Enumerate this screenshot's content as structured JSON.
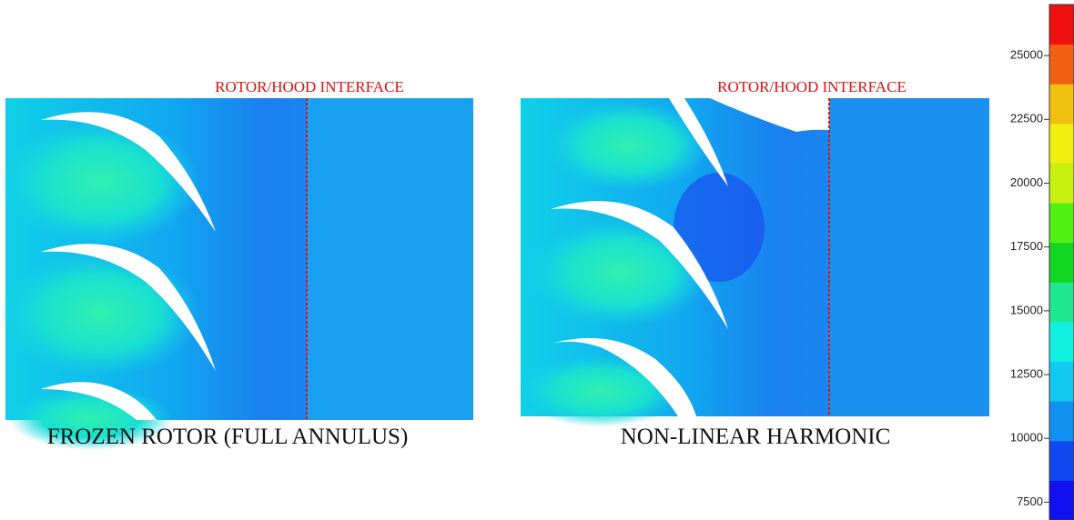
{
  "panels": [
    {
      "interface_label": "ROTOR/HOOD INTERFACE",
      "caption": "FROZEN ROTOR (FULL ANNULUS)"
    },
    {
      "interface_label": "ROTOR/HOOD INTERFACE",
      "caption": "NON-LINEAR HARMONIC"
    }
  ],
  "colorbar": {
    "lim": [
      6800,
      27000
    ],
    "ticks": [
      7500,
      10000,
      12500,
      15000,
      17500,
      20000,
      22500,
      25000
    ],
    "colors": [
      "#1010f0",
      "#1048f0",
      "#1090f0",
      "#10c8f0",
      "#10f0e0",
      "#20e890",
      "#10d820",
      "#50f010",
      "#c8f010",
      "#f0f010",
      "#f0c010",
      "#f06010",
      "#f01010"
    ]
  }
}
